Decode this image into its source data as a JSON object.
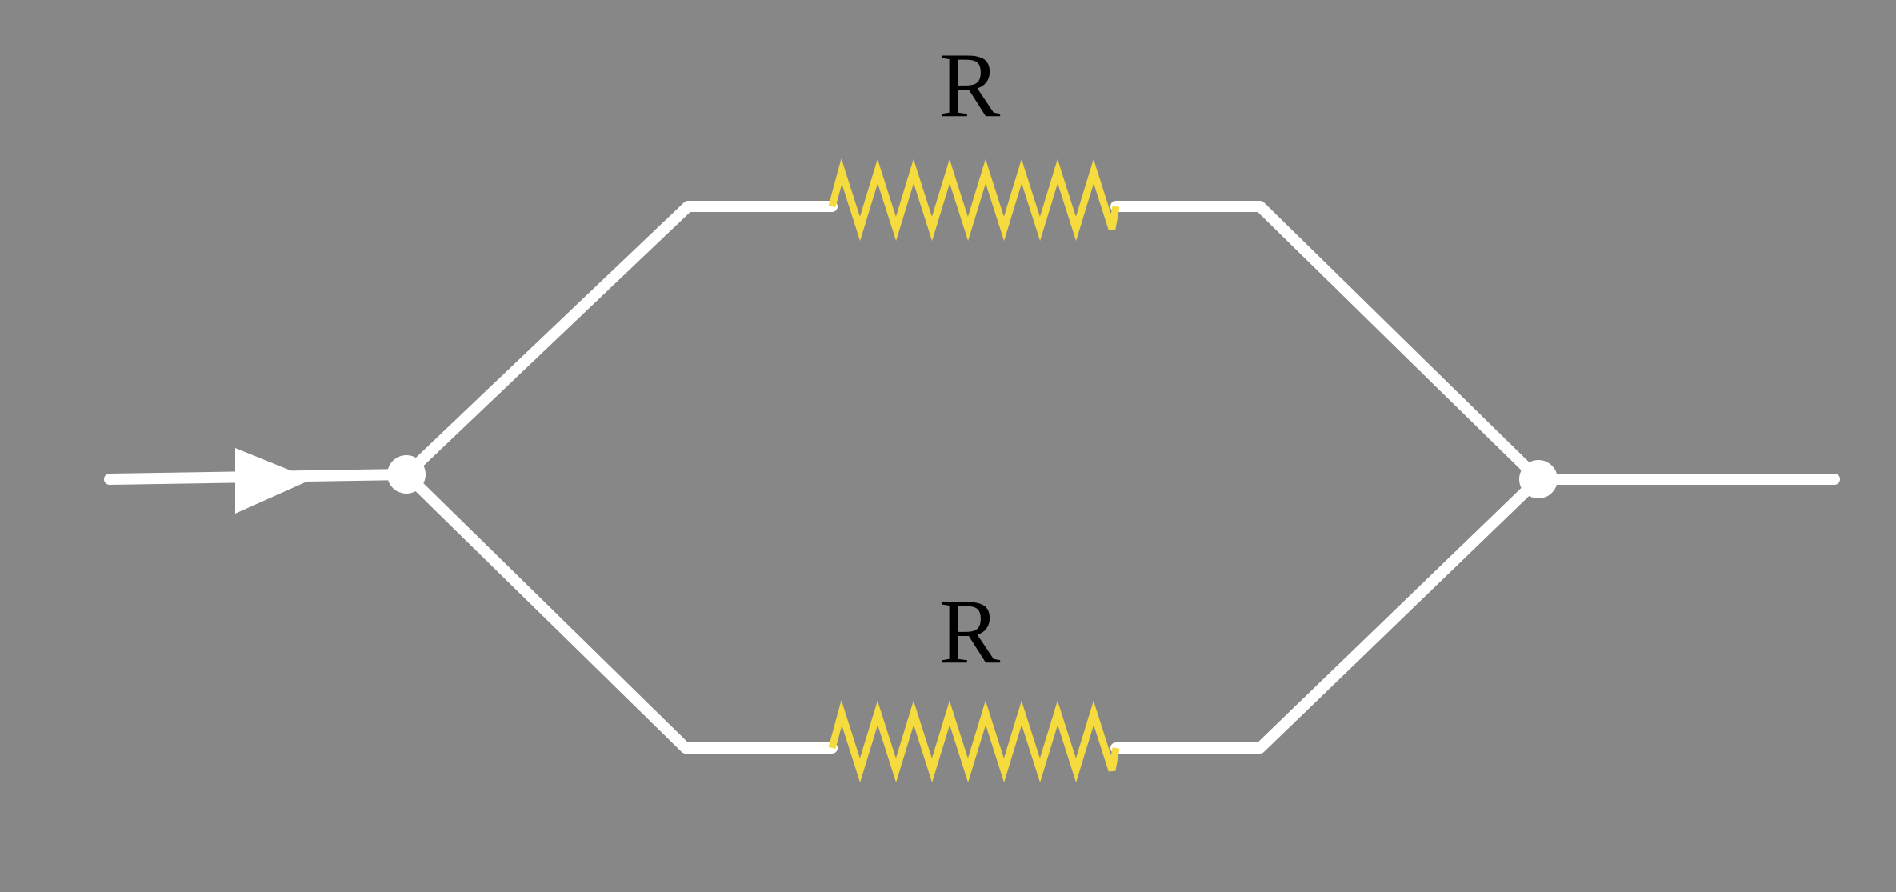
{
  "diagram": {
    "type": "parallel-resistor-circuit",
    "background_color": "#878787",
    "wire_color": "#ffffff",
    "resistor_color": "#f6db3f",
    "label_color": "#000000",
    "resistors": [
      {
        "label": "R",
        "branch": "top"
      },
      {
        "label": "R",
        "branch": "bottom"
      }
    ],
    "current_direction": "left-to-right"
  }
}
